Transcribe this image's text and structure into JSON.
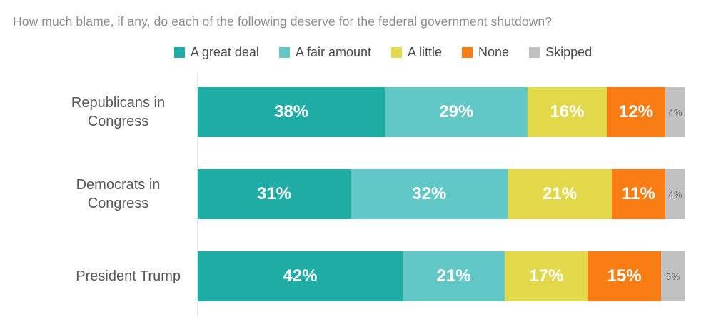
{
  "chart_data": {
    "type": "bar",
    "stacked": true,
    "orientation": "horizontal",
    "title": "How much blame, if any, do each of the following deserve for the federal government shutdown?",
    "categories": [
      "Republicans in Congress",
      "Democrats in Congress",
      "President Trump"
    ],
    "series": [
      {
        "name": "A great deal",
        "color": "#1eaea6",
        "values": [
          38,
          31,
          42
        ]
      },
      {
        "name": "A fair amount",
        "color": "#61c8c5",
        "values": [
          29,
          32,
          21
        ]
      },
      {
        "name": "A little",
        "color": "#e1d94a",
        "values": [
          16,
          21,
          17
        ]
      },
      {
        "name": "None",
        "color": "#fa7d14",
        "values": [
          12,
          11,
          15
        ]
      },
      {
        "name": "Skipped",
        "color": "#c1c1c1",
        "values": [
          4,
          4,
          5
        ]
      }
    ],
    "value_suffix": "%",
    "legend_position": "top",
    "grid": false,
    "axis_line_color": "#e4e4e4",
    "title_color": "#8d8d8d",
    "category_label_color": "#56575a",
    "in_bar_label_color": "#ffffff",
    "skipped_label_color": "#6f6f6f",
    "xlabel": "",
    "ylabel": ""
  }
}
